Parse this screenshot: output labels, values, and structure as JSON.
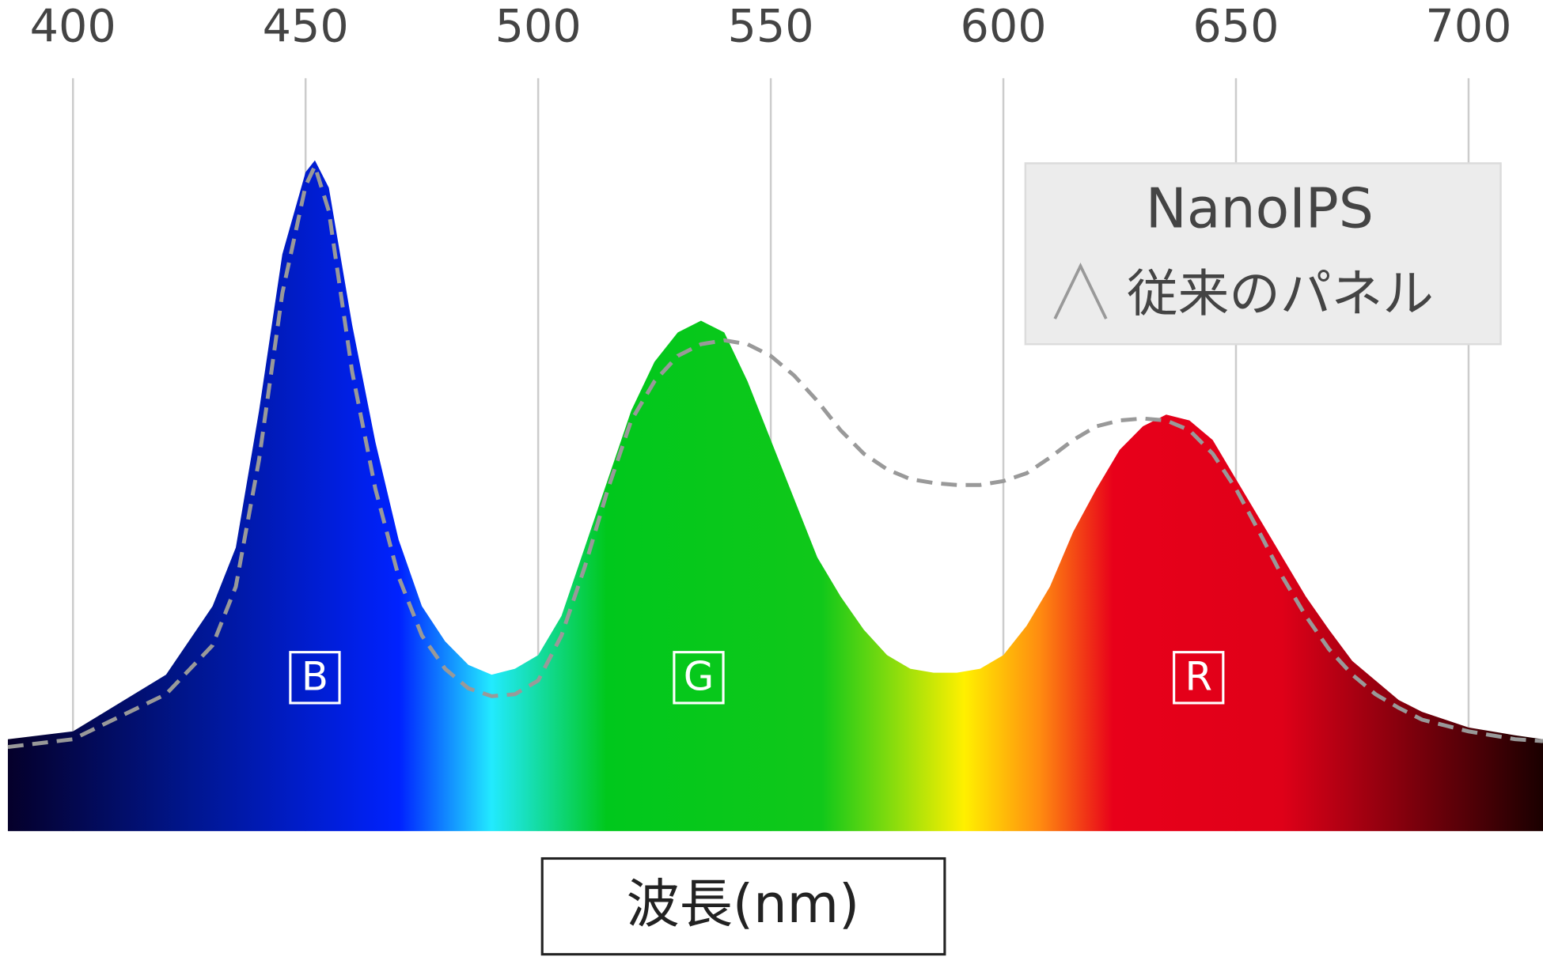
{
  "chart_data": {
    "type": "spectrum-area",
    "x": [
      386,
      400,
      420,
      430,
      435,
      440,
      445,
      450,
      452,
      455,
      460,
      465,
      470,
      475,
      480,
      485,
      490,
      495,
      500,
      505,
      510,
      515,
      520,
      525,
      530,
      535,
      540,
      545,
      550,
      555,
      560,
      565,
      570,
      575,
      580,
      585,
      590,
      595,
      600,
      605,
      610,
      615,
      620,
      625,
      630,
      635,
      640,
      645,
      650,
      655,
      660,
      665,
      670,
      675,
      680,
      685,
      690,
      695,
      700,
      710,
      716
    ],
    "series": [
      {
        "name": "NanoIPS",
        "values": [
          1,
          3,
          17.5,
          35,
          50,
          85,
          125,
          146,
          149,
          142,
          107,
          77,
          52,
          35,
          26,
          20,
          17.5,
          19,
          22.5,
          32.5,
          50,
          67.5,
          85,
          97.5,
          105,
          108,
          105,
          92.5,
          77.5,
          62.5,
          47.5,
          37.5,
          29,
          22.5,
          19,
          18,
          18,
          19,
          22.5,
          30,
          40,
          54,
          65,
          75,
          81,
          84,
          82.5,
          77.5,
          67.5,
          57.5,
          47.5,
          37.5,
          29,
          21,
          16,
          11,
          8,
          6,
          4,
          2,
          1
        ]
      },
      {
        "name": "従来のパネル",
        "color": "#999999",
        "dashed": true,
        "values": [
          -1,
          1,
          12.5,
          25,
          40,
          72.5,
          115,
          142.5,
          147.5,
          136,
          95,
          65,
          42.5,
          27.5,
          19,
          14,
          12,
          12.5,
          16,
          27.5,
          45,
          65,
          82.5,
          92.5,
          99,
          102,
          103,
          102,
          99,
          94,
          87.5,
          80,
          74,
          70,
          67.5,
          66.5,
          66,
          66,
          67,
          69,
          73,
          77.5,
          81,
          82.5,
          83,
          82.5,
          80,
          74,
          65,
          54,
          42.5,
          32.5,
          24,
          17.5,
          12.5,
          9,
          6,
          4.5,
          3,
          1,
          0.5
        ]
      }
    ],
    "band_labels": [
      "B",
      "G",
      "R"
    ],
    "xlim": [
      386,
      716
    ],
    "xticks": [
      400,
      450,
      500,
      550,
      600,
      650,
      700
    ],
    "ylim": [
      -22.5,
      170
    ],
    "grid": true,
    "xlabel": "波長(nm)"
  }
}
